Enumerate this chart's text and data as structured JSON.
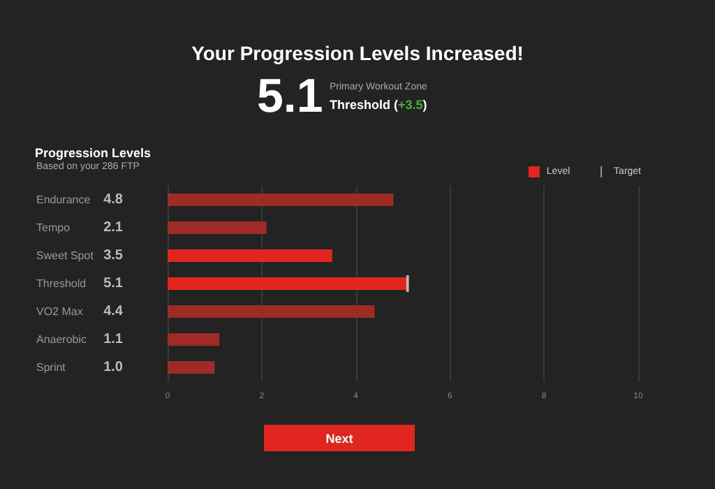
{
  "chart_data": {
    "type": "bar",
    "orientation": "horizontal",
    "title": "Your Progression Levels Increased!",
    "subtitle": "Progression Levels",
    "annotations": [
      "Based on your 286 FTP",
      "5.1",
      "Primary Workout Zone",
      "Threshold (+3.5)",
      "Next"
    ],
    "categories": [
      "Endurance",
      "Tempo",
      "Sweet Spot",
      "Threshold",
      "VO2 Max",
      "Anaerobic",
      "Sprint"
    ],
    "series": [
      {
        "name": "Level",
        "color": "#e0261f",
        "colors": [
          "#9e2b25",
          "#9e2b25",
          "#e0261f",
          "#e0261f",
          "#9e2b25",
          "#9e2b25",
          "#9e2b25"
        ],
        "values": [
          4.8,
          2.1,
          3.5,
          5.1,
          4.4,
          1.1,
          1.0
        ],
        "value_labels": [
          "4.8",
          "2.1",
          "3.5",
          "5.1",
          "4.4",
          "1.1",
          "1.0"
        ]
      },
      {
        "name": "Target",
        "type": "scatter",
        "color": "#d8d8d8",
        "x": [
          "Threshold"
        ],
        "values": [
          5.1
        ]
      }
    ],
    "data_labels": false,
    "xlim": [
      0,
      10
    ],
    "xticks": [
      0,
      2,
      4,
      6,
      8,
      10
    ],
    "grid": "x",
    "legend": "top right"
  }
}
